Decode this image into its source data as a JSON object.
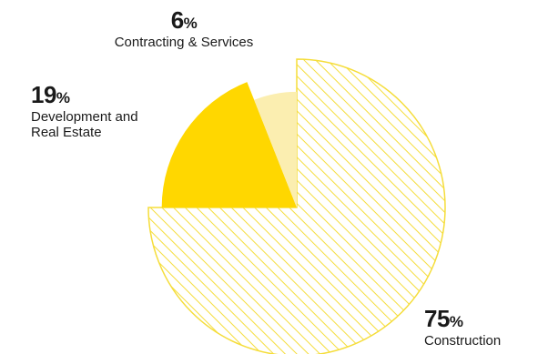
{
  "chart_data": {
    "type": "pie",
    "title": "",
    "slices": [
      {
        "label": "Construction",
        "value": 75,
        "color": "#f5dd3a",
        "fill": "hatched"
      },
      {
        "label": "Development and Real Estate",
        "value": 19,
        "color": "#ffd700",
        "fill": "solid"
      },
      {
        "label": "Contracting & Services",
        "value": 6,
        "color": "#fbeeb0",
        "fill": "solid"
      }
    ],
    "percent_symbol": "%",
    "legend": "none",
    "start_angle": "12 o'clock",
    "direction": "clockwise"
  }
}
